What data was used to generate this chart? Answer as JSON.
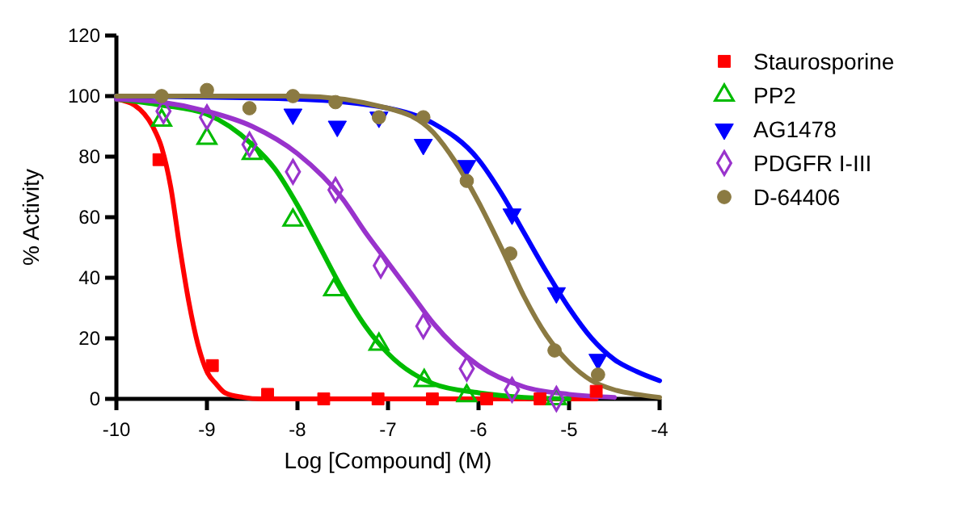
{
  "chart_data": {
    "type": "scatter",
    "xlabel": "Log [Compound] (M)",
    "ylabel": "% Activity",
    "xlim": [
      -10,
      -4
    ],
    "xticks": [
      -10,
      -9,
      -8,
      -7,
      -6,
      -5,
      -4
    ],
    "ylim": [
      0,
      120
    ],
    "yticks": [
      0,
      20,
      40,
      60,
      80,
      100,
      120
    ],
    "grid": false,
    "legend": "right",
    "series": [
      {
        "name": "Staurosporine",
        "marker": "square",
        "color": "#ff0000",
        "x": [
          -9.53,
          -8.94,
          -8.33,
          -7.71,
          -7.11,
          -6.51,
          -5.91,
          -5.32,
          -4.7
        ],
        "values": [
          79,
          11,
          1.5,
          0,
          0,
          0,
          0,
          0,
          2.5
        ]
      },
      {
        "name": "PP2",
        "marker": "triangle-open",
        "color": "#00bb00",
        "x": [
          -9.5,
          -9.0,
          -8.5,
          -8.05,
          -7.6,
          -7.1,
          -6.6,
          -6.13,
          -5.14
        ],
        "values": [
          92,
          86,
          81,
          59,
          36,
          18,
          6,
          1,
          0
        ]
      },
      {
        "name": "AG1478",
        "marker": "triangle-down",
        "color": "#0000ff",
        "x": [
          -8.05,
          -7.56,
          -7.1,
          -6.61,
          -6.13,
          -5.63,
          -5.14,
          -4.68
        ],
        "values": [
          94,
          90,
          93,
          84,
          77,
          61,
          35,
          13
        ]
      },
      {
        "name": "PDGFR I-III",
        "marker": "diamond-open",
        "color": "#9933cc",
        "x": [
          -9.48,
          -9.0,
          -8.53,
          -8.05,
          -7.58,
          -7.08,
          -6.61,
          -6.13,
          -5.63,
          -5.14
        ],
        "values": [
          95,
          93,
          84,
          75,
          69,
          44,
          24,
          10,
          3,
          0
        ]
      },
      {
        "name": "D-64406",
        "marker": "circle",
        "color": "#8b7a42",
        "x": [
          -9.5,
          -9.0,
          -8.53,
          -8.05,
          -7.58,
          -7.1,
          -6.61,
          -6.13,
          -5.65,
          -5.16,
          -4.68
        ],
        "values": [
          100,
          102,
          96,
          100,
          98,
          93,
          93,
          72,
          48,
          16,
          8
        ]
      },
      {
        "type": "line",
        "color": "#ff0000",
        "x": [
          -10,
          -9.8,
          -9.6,
          -9.5,
          -9.4,
          -9.3,
          -9.2,
          -9.1,
          -9.0,
          -8.9,
          -8.8,
          -8.6,
          -8.4,
          -7,
          -4.7
        ],
        "values": [
          99,
          97,
          90,
          83,
          70,
          50,
          32,
          18,
          9,
          5,
          2,
          0.5,
          0,
          0,
          0
        ]
      },
      {
        "type": "line",
        "color": "#00bb00",
        "x": [
          -10,
          -9.5,
          -9,
          -8.5,
          -8.25,
          -8,
          -7.75,
          -7.5,
          -7.25,
          -7,
          -6.5,
          -6,
          -5.5,
          -5
        ],
        "values": [
          99,
          97,
          94,
          84,
          76,
          64,
          50,
          36,
          24,
          15,
          5,
          2,
          0.5,
          0
        ]
      },
      {
        "type": "line",
        "color": "#9933cc",
        "x": [
          -10,
          -9.5,
          -9,
          -8.5,
          -8,
          -7.5,
          -7.25,
          -7,
          -6.75,
          -6.5,
          -6,
          -5.5,
          -5,
          -4.5
        ],
        "values": [
          99,
          98,
          95,
          90,
          81,
          66,
          55,
          45,
          35,
          25,
          11,
          4,
          1.5,
          0.5
        ]
      },
      {
        "type": "line",
        "color": "#0000ff",
        "x": [
          -10,
          -8,
          -7,
          -6.5,
          -6,
          -5.75,
          -5.5,
          -5.25,
          -5,
          -4.75,
          -4.5,
          -4.25,
          -4
        ],
        "values": [
          100,
          99,
          96,
          91,
          79,
          68,
          55,
          42,
          30,
          20,
          13,
          9,
          6
        ]
      },
      {
        "type": "line",
        "color": "#8b7a42",
        "x": [
          -10,
          -8,
          -7,
          -6.5,
          -6.25,
          -6,
          -5.75,
          -5.5,
          -5.25,
          -5,
          -4.75,
          -4.5,
          -4.25,
          -4
        ],
        "values": [
          100,
          100,
          96,
          88,
          78,
          65,
          50,
          34,
          21,
          12,
          6,
          3,
          1.5,
          0.5
        ]
      }
    ]
  }
}
